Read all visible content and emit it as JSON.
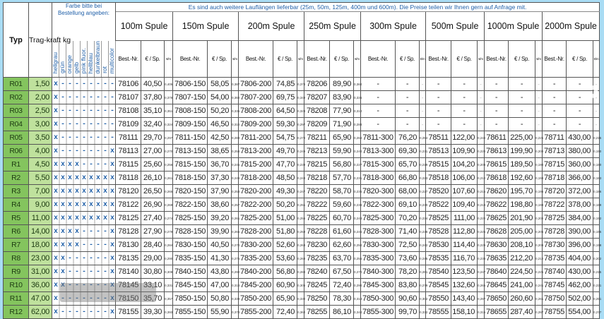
{
  "header": {
    "typ": "Typ",
    "tragkraft": "Trag-kraft kg",
    "farbe_title": "Farbe bitte bei Bestellung angeben:",
    "colors": [
      "hellgrau",
      "grün",
      "orange",
      "gelb",
      "pink fluor.",
      "hellblau",
      "dunkelbraun",
      "rot",
      "multicolor"
    ],
    "notice": "Es sind auch weitere Lauflängen lieferbar (25m, 50m, 125m, 400m und 600m). Die Preise teilen wir Ihnen gern auf Anfrage mit.",
    "groups": [
      "100m Spule",
      "150m Spule",
      "200m Spule",
      "250m Spule",
      "300m Spule",
      "500m Spule",
      "1000m Spule",
      "2000m Spule"
    ],
    "sub_nr": "Best.-Nr.",
    "sub_price": "€ / Sp.",
    "sub_pm": "€/m"
  },
  "colors": {
    "typ_bg": "#84c45e",
    "kraft_bg": "#bfe19d",
    "accent": "#1f5fa8",
    "page_bg": "#a9dcf4"
  },
  "rows": [
    {
      "typ": "R01",
      "kg": "1,50",
      "c": "x--------",
      "g": [
        [
          "78106",
          "40,50",
          "0,405"
        ],
        [
          "7806-150",
          "58,05",
          "0,387"
        ],
        [
          "7806-200",
          "74,85",
          "0,374"
        ],
        [
          "78206",
          "89,90",
          "0,360"
        ],
        [
          "-",
          "-",
          "-"
        ],
        [
          "-",
          "-",
          "-"
        ],
        [
          "-",
          "-",
          "-"
        ],
        [
          "-",
          "-",
          "-"
        ]
      ]
    },
    {
      "typ": "R02",
      "kg": "2,00",
      "c": "x--------",
      "g": [
        [
          "78107",
          "37,80",
          "0,378"
        ],
        [
          "7807-150",
          "54,00",
          "0,360"
        ],
        [
          "7807-200",
          "69,75",
          "0,349"
        ],
        [
          "78207",
          "83,90",
          "0,336"
        ],
        [
          "-",
          "-",
          "-"
        ],
        [
          "-",
          "-",
          "-"
        ],
        [
          "-",
          "-",
          "-"
        ],
        [
          "-",
          "-",
          "-"
        ]
      ]
    },
    {
      "typ": "R03",
      "kg": "2,50",
      "c": "x--------",
      "g": [
        [
          "78108",
          "35,10",
          "0,351"
        ],
        [
          "7808-150",
          "50,20",
          "0,335"
        ],
        [
          "7808-200",
          "64,50",
          "0,323"
        ],
        [
          "78208",
          "77,90",
          "0,312"
        ],
        [
          "-",
          "-",
          "-"
        ],
        [
          "-",
          "-",
          "-"
        ],
        [
          "-",
          "-",
          "-"
        ],
        [
          "-",
          "-",
          "-"
        ]
      ]
    },
    {
      "typ": "R04",
      "kg": "3,00",
      "c": "x--------",
      "g": [
        [
          "78109",
          "32,40",
          "0,324"
        ],
        [
          "7809-150",
          "46,50",
          "0,310"
        ],
        [
          "7809-200",
          "59,30",
          "0,297"
        ],
        [
          "78209",
          "71,90",
          "0,288"
        ],
        [
          "-",
          "-",
          "-"
        ],
        [
          "-",
          "-",
          "-"
        ],
        [
          "-",
          "-",
          "-"
        ],
        [
          "-",
          "-",
          "-"
        ]
      ]
    },
    {
      "typ": "R05",
      "kg": "3,50",
      "c": "x--------",
      "g": [
        [
          "78111",
          "29,70",
          "0,297"
        ],
        [
          "7811-150",
          "42,50",
          "0,283"
        ],
        [
          "7811-200",
          "54,75",
          "0,274"
        ],
        [
          "78211",
          "65,90",
          "0,264"
        ],
        [
          "7811-300",
          "76,20",
          "0,254"
        ],
        [
          "78511",
          "122,00",
          "0,244"
        ],
        [
          "78611",
          "225,00",
          "0,225"
        ],
        [
          "78711",
          "430,00",
          "0,215"
        ]
      ]
    },
    {
      "typ": "R06",
      "kg": "4,00",
      "c": "x-------x",
      "g": [
        [
          "78113",
          "27,00",
          "0,270"
        ],
        [
          "7813-150",
          "38,65",
          "0,258"
        ],
        [
          "7813-200",
          "49,70",
          "0,249"
        ],
        [
          "78213",
          "59,90",
          "0,240"
        ],
        [
          "7813-300",
          "69,30",
          "0,231"
        ],
        [
          "78513",
          "109,90",
          "0,220"
        ],
        [
          "78613",
          "199,90",
          "0,200"
        ],
        [
          "78713",
          "380,00",
          "0,190"
        ]
      ]
    },
    {
      "typ": "R1",
      "kg": "4,50",
      "c": "xxxx----x",
      "g": [
        [
          "78115",
          "25,60",
          "0,256"
        ],
        [
          "7815-150",
          "36,70",
          "0,245"
        ],
        [
          "7815-200",
          "47,70",
          "0,239"
        ],
        [
          "78215",
          "56,80",
          "0,227"
        ],
        [
          "7815-300",
          "65,70",
          "0,219"
        ],
        [
          "78515",
          "104,20",
          "0,208"
        ],
        [
          "78615",
          "189,50",
          "0,190"
        ],
        [
          "78715",
          "360,00",
          "0,180"
        ]
      ]
    },
    {
      "typ": "R2",
      "kg": "5,50",
      "c": "xxxxxxxxx",
      "g": [
        [
          "78118",
          "26,10",
          "0,261"
        ],
        [
          "7818-150",
          "37,30",
          "0,249"
        ],
        [
          "7818-200",
          "48,50",
          "0,243"
        ],
        [
          "78218",
          "57,70",
          "0,231"
        ],
        [
          "7818-300",
          "66,80",
          "0,223"
        ],
        [
          "78518",
          "106,00",
          "0,212"
        ],
        [
          "78618",
          "192,60",
          "0,193"
        ],
        [
          "78718",
          "366,00",
          "0,183"
        ]
      ]
    },
    {
      "typ": "R3",
      "kg": "7,00",
      "c": "xxxxxxxxx",
      "g": [
        [
          "78120",
          "26,50",
          "0,265"
        ],
        [
          "7820-150",
          "37,90",
          "0,253"
        ],
        [
          "7820-200",
          "49,30",
          "0,247"
        ],
        [
          "78220",
          "58,70",
          "0,235"
        ],
        [
          "7820-300",
          "68,00",
          "0,227"
        ],
        [
          "78520",
          "107,60",
          "0,215"
        ],
        [
          "78620",
          "195,70",
          "0,196"
        ],
        [
          "78720",
          "372,00",
          "0,186"
        ]
      ]
    },
    {
      "typ": "R4",
      "kg": "9,00",
      "c": "xxxxxxxxx",
      "g": [
        [
          "78122",
          "26,90",
          "0,269"
        ],
        [
          "7822-150",
          "38,60",
          "0,257"
        ],
        [
          "7822-200",
          "50,20",
          "0,251"
        ],
        [
          "78222",
          "59,60",
          "0,238"
        ],
        [
          "7822-300",
          "69,10",
          "0,230"
        ],
        [
          "78522",
          "109,40",
          "0,219"
        ],
        [
          "78622",
          "198,80",
          "0,199"
        ],
        [
          "78722",
          "378,00",
          "0,189"
        ]
      ]
    },
    {
      "typ": "R5",
      "kg": "11,00",
      "c": "xxxxxxxxx",
      "g": [
        [
          "78125",
          "27,40",
          "0,274"
        ],
        [
          "7825-150",
          "39,20",
          "0,261"
        ],
        [
          "7825-200",
          "51,00",
          "0,255"
        ],
        [
          "78225",
          "60,70",
          "0,243"
        ],
        [
          "7825-300",
          "70,20",
          "0,234"
        ],
        [
          "78525",
          "111,00",
          "0,222"
        ],
        [
          "78625",
          "201,90",
          "0,202"
        ],
        [
          "78725",
          "384,00",
          "0,192"
        ]
      ]
    },
    {
      "typ": "R6",
      "kg": "14,00",
      "c": "xxxx----x",
      "g": [
        [
          "78128",
          "27,90",
          "0,279"
        ],
        [
          "7828-150",
          "39,90",
          "0,266"
        ],
        [
          "7828-200",
          "51,80",
          "0,259"
        ],
        [
          "78228",
          "61,60",
          "0,246"
        ],
        [
          "7828-300",
          "71,40",
          "0,238"
        ],
        [
          "78528",
          "112,80",
          "0,226"
        ],
        [
          "78628",
          "205,00",
          "0,205"
        ],
        [
          "78728",
          "390,00",
          "0,195"
        ]
      ]
    },
    {
      "typ": "R7",
      "kg": "18,00",
      "c": "xxxx----x",
      "g": [
        [
          "78130",
          "28,40",
          "0,284"
        ],
        [
          "7830-150",
          "40,50",
          "0,270"
        ],
        [
          "7830-200",
          "52,60",
          "0,263"
        ],
        [
          "78230",
          "62,60",
          "0,250"
        ],
        [
          "7830-300",
          "72,50",
          "0,242"
        ],
        [
          "78530",
          "114,40",
          "0,229"
        ],
        [
          "78630",
          "208,10",
          "0,208"
        ],
        [
          "78730",
          "396,00",
          "0,198"
        ]
      ]
    },
    {
      "typ": "R8",
      "kg": "23,00",
      "c": "xx------x",
      "g": [
        [
          "78135",
          "29,00",
          "0,290"
        ],
        [
          "7835-150",
          "41,30",
          "0,275"
        ],
        [
          "7835-200",
          "53,60",
          "0,268"
        ],
        [
          "78235",
          "63,70",
          "0,255"
        ],
        [
          "7835-300",
          "73,60",
          "0,245"
        ],
        [
          "78535",
          "116,70",
          "0,233"
        ],
        [
          "78635",
          "212,20",
          "0,212"
        ],
        [
          "78735",
          "404,00",
          "0,202"
        ]
      ]
    },
    {
      "typ": "R9",
      "kg": "31,00",
      "c": "xx------x",
      "g": [
        [
          "78140",
          "30,80",
          "0,308"
        ],
        [
          "7840-150",
          "43,80",
          "0,292"
        ],
        [
          "7840-200",
          "56,80",
          "0,284"
        ],
        [
          "78240",
          "67,50",
          "0,270"
        ],
        [
          "7840-300",
          "78,20",
          "0,261"
        ],
        [
          "78540",
          "123,50",
          "0,247"
        ],
        [
          "78640",
          "224,50",
          "0,225"
        ],
        [
          "78740",
          "430,00",
          "0,215"
        ]
      ]
    },
    {
      "typ": "R10",
      "kg": "36,00",
      "c": "xx------x",
      "g": [
        [
          "78145",
          "33,10",
          "0,331"
        ],
        [
          "7845-150",
          "47,00",
          "0,313"
        ],
        [
          "7845-200",
          "60,90",
          "0,305"
        ],
        [
          "78245",
          "72,40",
          "0,290"
        ],
        [
          "7845-300",
          "83,80",
          "0,279"
        ],
        [
          "78545",
          "132,60",
          "0,265"
        ],
        [
          "78645",
          "241,00",
          "0,241"
        ],
        [
          "78745",
          "462,00",
          "0,231"
        ]
      ]
    },
    {
      "typ": "R11",
      "kg": "47,00",
      "c": "x-------x",
      "g": [
        [
          "78150",
          "35,70",
          "0,357"
        ],
        [
          "7850-150",
          "50,80",
          "0,339"
        ],
        [
          "7850-200",
          "65,90",
          "0,330"
        ],
        [
          "78250",
          "78,30",
          "0,313"
        ],
        [
          "7850-300",
          "90,60",
          "0,302"
        ],
        [
          "78550",
          "143,40",
          "0,287"
        ],
        [
          "78650",
          "260,60",
          "0,261"
        ],
        [
          "78750",
          "502,00",
          "0,251"
        ]
      ]
    },
    {
      "typ": "R12",
      "kg": "62,00",
      "c": "x-------x",
      "g": [
        [
          "78155",
          "39,30",
          "0,393"
        ],
        [
          "7855-150",
          "55,90",
          "0,373"
        ],
        [
          "7855-200",
          "72,40",
          "0,362"
        ],
        [
          "78255",
          "86,10",
          "0,344"
        ],
        [
          "7855-300",
          "99,70",
          "0,332"
        ],
        [
          "78555",
          "158,10",
          "0,316"
        ],
        [
          "78655",
          "287,40",
          "0,287"
        ],
        [
          "78755",
          "554,00",
          "0,277"
        ]
      ]
    }
  ],
  "icons": {
    "next": "chevron-right-icon"
  }
}
